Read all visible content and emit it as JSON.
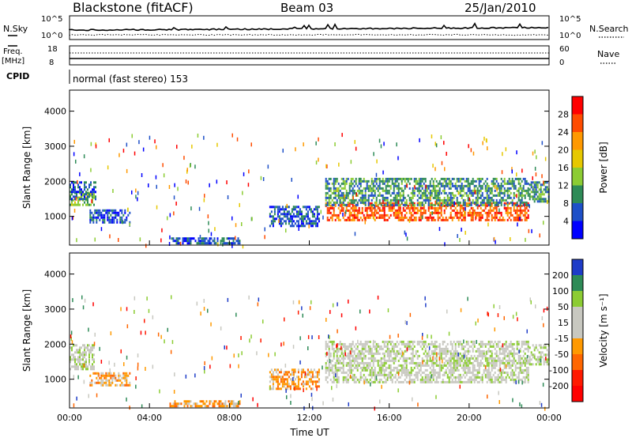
{
  "header": {
    "title": "Blackstone (fitACF)",
    "beam": "Beam 03",
    "date": "25/Jan/2010"
  },
  "status_panels": {
    "nsky_label": "N.Sky",
    "nsearch_label": "N.Search",
    "freq_label_1": "Freq.",
    "freq_label_2": "[MHz]",
    "nave_label": "Nave",
    "cpid_label": "CPID",
    "noise_ticks": [
      "10^5",
      "10^0"
    ],
    "freq_ticks": [
      "18",
      "8"
    ],
    "nave_ticks": [
      "60",
      "0"
    ],
    "cpid_text": "normal (fast stereo) 153"
  },
  "chart_data": [
    {
      "type": "heatmap",
      "panel": "power",
      "ylabel": "Slant Range [km]",
      "xlabel": "Time UT",
      "ylim": [
        180,
        4600
      ],
      "y_ticks": [
        1000,
        2000,
        3000,
        4000
      ],
      "x_ticks": [
        "00:00",
        "04:00",
        "08:00",
        "12:00",
        "16:00",
        "20:00",
        "00:00"
      ],
      "colorbar": {
        "label": "Power [dB]",
        "ticks": [
          28,
          24,
          20,
          16,
          12,
          8,
          4
        ],
        "colors": [
          "#ff0000",
          "#ff4c00",
          "#ff9900",
          "#e6c800",
          "#8ccc33",
          "#2e8b57",
          "#1e50c8",
          "#0000ff"
        ]
      },
      "regions": [
        {
          "t0": 0.0,
          "t1": 1.2,
          "r0": 1300,
          "r1": 1700,
          "level": 4
        },
        {
          "t0": 0.0,
          "t1": 1.3,
          "r0": 1500,
          "r1": 2000,
          "level": 6
        },
        {
          "t0": 1.0,
          "t1": 3.0,
          "r0": 800,
          "r1": 1200,
          "level": 6
        },
        {
          "t0": 5.0,
          "t1": 8.5,
          "r0": 250,
          "r1": 400,
          "level": 6
        },
        {
          "t0": 10.0,
          "t1": 12.5,
          "r0": 700,
          "r1": 1300,
          "level": 6
        },
        {
          "t0": 12.8,
          "t1": 23.0,
          "r0": 900,
          "r1": 1400,
          "level": 1
        },
        {
          "t0": 12.8,
          "t1": 23.0,
          "r0": 1300,
          "r1": 2100,
          "level": 5
        },
        {
          "t0": 23.0,
          "t1": 24.0,
          "r0": 1400,
          "r1": 2000,
          "level": 5
        }
      ]
    },
    {
      "type": "heatmap",
      "panel": "velocity",
      "ylabel": "Slant Range [km]",
      "xlabel": "Time UT",
      "ylim": [
        180,
        4600
      ],
      "y_ticks": [
        1000,
        2000,
        3000,
        4000
      ],
      "x_ticks": [
        "00:00",
        "04:00",
        "08:00",
        "12:00",
        "16:00",
        "20:00",
        "00:00"
      ],
      "colorbar": {
        "label": "Velocity [m s⁻¹]",
        "ticks": [
          200,
          100,
          50,
          15,
          -15,
          -50,
          -100,
          -200
        ],
        "colors": [
          "#1e3cc8",
          "#2e8b57",
          "#8ccc33",
          "#c8c8c0",
          "#c8c8c0",
          "#ff9900",
          "#ff6600",
          "#ff1a00",
          "#ff0000"
        ]
      },
      "regions": [
        {
          "t0": 0.0,
          "t1": 1.2,
          "r0": 1300,
          "r1": 2000,
          "level": 3
        },
        {
          "t0": 1.0,
          "t1": 3.0,
          "r0": 800,
          "r1": 1200,
          "level": 5
        },
        {
          "t0": 5.0,
          "t1": 8.5,
          "r0": 250,
          "r1": 400,
          "level": 5
        },
        {
          "t0": 10.0,
          "t1": 12.5,
          "r0": 700,
          "r1": 1300,
          "level": 5
        },
        {
          "t0": 12.8,
          "t1": 23.0,
          "r0": 900,
          "r1": 2100,
          "level": 3
        },
        {
          "t0": 23.0,
          "t1": 24.0,
          "r0": 1400,
          "r1": 2000,
          "level": 3
        }
      ]
    }
  ]
}
